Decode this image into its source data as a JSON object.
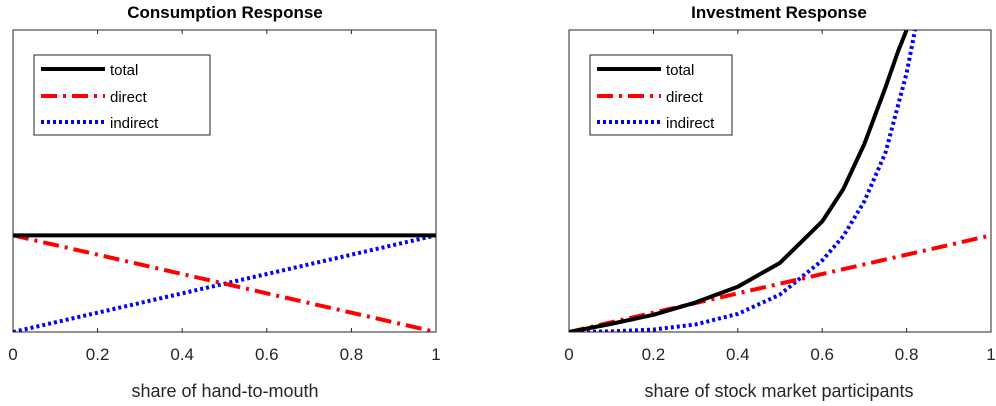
{
  "chart_data": [
    {
      "type": "line",
      "title": "Consumption Response",
      "xlabel": "share of hand-to-mouth",
      "ylabel": "",
      "xlim": [
        0,
        1
      ],
      "ylim": [
        0,
        1
      ],
      "xticks": [
        "0",
        "0.2",
        "0.4",
        "0.6",
        "0.8",
        "1"
      ],
      "grid": false,
      "legend_position": "top-left",
      "series": [
        {
          "name": "total",
          "color": "#000000",
          "style": "solid",
          "x": [
            0,
            1
          ],
          "y": [
            0.32,
            0.32
          ]
        },
        {
          "name": "direct",
          "color": "#ff0000",
          "style": "dashdot",
          "x": [
            0,
            1
          ],
          "y": [
            0.32,
            0
          ]
        },
        {
          "name": "indirect",
          "color": "#0000ff",
          "style": "dotted",
          "x": [
            0,
            1
          ],
          "y": [
            0,
            0.32
          ]
        }
      ]
    },
    {
      "type": "line",
      "title": "Investment Response",
      "xlabel": "share of stock market participants",
      "ylabel": "",
      "xlim": [
        0,
        1
      ],
      "ylim": [
        0,
        1
      ],
      "xticks": [
        "0",
        "0.2",
        "0.4",
        "0.6",
        "0.8",
        "1"
      ],
      "grid": false,
      "legend_position": "top-left",
      "series": [
        {
          "name": "total",
          "color": "#000000",
          "style": "solid",
          "x": [
            0,
            0.1,
            0.2,
            0.3,
            0.4,
            0.5,
            0.6,
            0.65,
            0.7,
            0.75,
            0.78,
            0.8
          ],
          "y": [
            0,
            0.027,
            0.057,
            0.098,
            0.15,
            0.229,
            0.366,
            0.473,
            0.623,
            0.81,
            0.93,
            1.0
          ]
        },
        {
          "name": "direct",
          "color": "#ff0000",
          "style": "dashdot",
          "x": [
            0,
            1
          ],
          "y": [
            0,
            0.32
          ]
        },
        {
          "name": "indirect",
          "color": "#0000ff",
          "style": "dotted",
          "x": [
            0,
            0.1,
            0.2,
            0.3,
            0.4,
            0.5,
            0.6,
            0.65,
            0.7,
            0.75,
            0.8,
            0.82
          ],
          "y": [
            0,
            0.002,
            0.008,
            0.025,
            0.06,
            0.124,
            0.237,
            0.317,
            0.433,
            0.594,
            0.857,
            1.0
          ]
        }
      ]
    }
  ]
}
